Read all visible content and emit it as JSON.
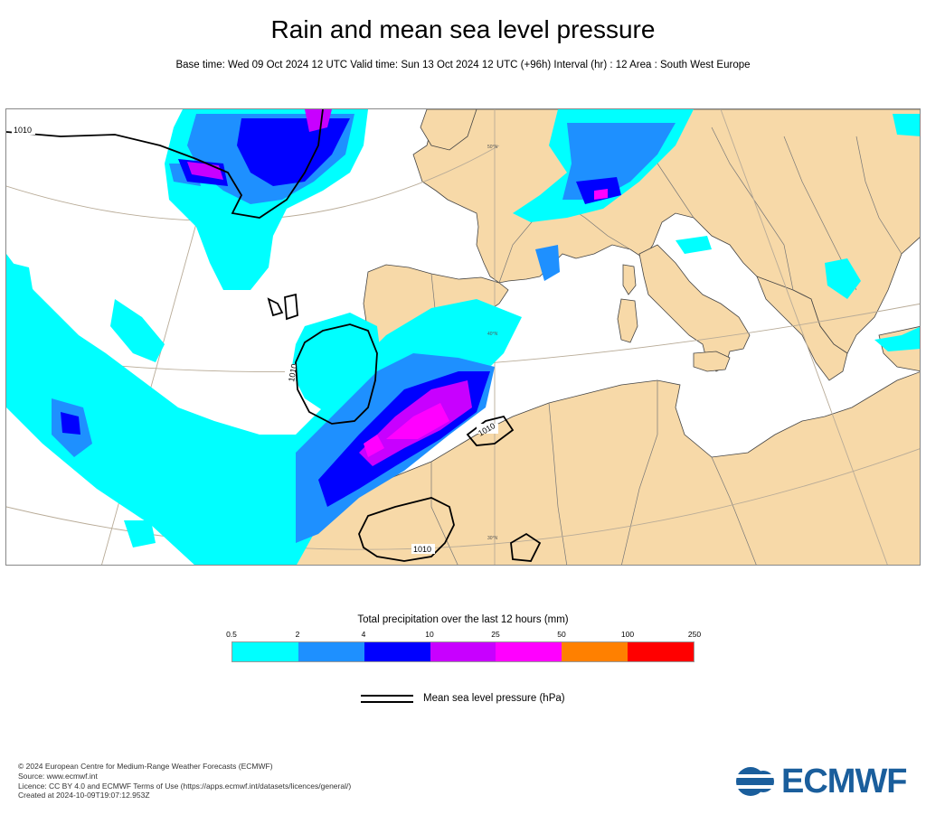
{
  "header": {
    "title": "Rain and mean sea level pressure",
    "subtitle": "Base time: Wed 09 Oct 2024 12 UTC Valid time: Sun 13 Oct 2024 12 UTC (+96h) Interval (hr) : 12 Area : South West Europe"
  },
  "map": {
    "isobar_labels": [
      "1010",
      "1010",
      "1010",
      "1010"
    ],
    "graticule_labels": [
      "50°N",
      "40°N",
      "30°N"
    ],
    "colors": {
      "land": "#f7d9a8",
      "sea": "#ffffff",
      "border": "#666666",
      "coast": "#444444",
      "isobar": "#000000",
      "graticule": "#b8ab97"
    }
  },
  "legend": {
    "title": "Total precipitation over the last 12 hours (mm)",
    "ticks": [
      "0.5",
      "2",
      "4",
      "10",
      "25",
      "50",
      "100",
      "250"
    ],
    "colors": [
      "#00ffff",
      "#1e90ff",
      "#0000ff",
      "#c800ff",
      "#ff00ff",
      "#ff8000",
      "#ff0000"
    ],
    "pressure_label": "Mean sea level pressure (hPa)"
  },
  "footer": {
    "lines": [
      "© 2024 European Centre for Medium-Range Weather Forecasts (ECMWF)",
      "Source: www.ecmwf.int",
      "Licence: CC BY 4.0 and ECMWF Terms of Use (https://apps.ecmwf.int/datasets/licences/general/)",
      "Created at 2024-10-09T19:07:12.953Z"
    ],
    "logo_text": "ECMWF"
  }
}
